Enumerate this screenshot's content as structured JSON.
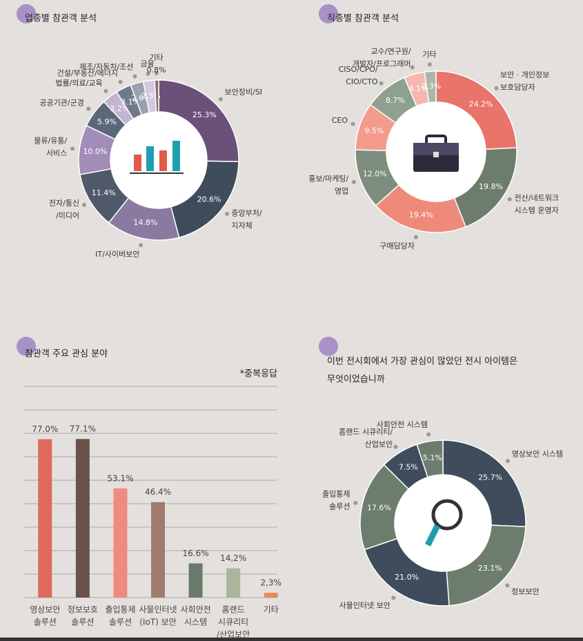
{
  "chart_data": [
    {
      "type": "donut",
      "title": "업종별 참관객 분석",
      "categories": [
        [
          "보안장비/SI"
        ],
        [
          "중앙부처/",
          "지자체"
        ],
        [
          "IT/사이버보안"
        ],
        [
          "전자/통신",
          "/미디어"
        ],
        [
          "물류/유통/",
          "서비스"
        ],
        [
          "공공기관/군경"
        ],
        [
          "법률/의료/교육"
        ],
        [
          "건설/부동산/에너지"
        ],
        [
          "제조/자동차/조선"
        ],
        [
          "금융"
        ],
        [
          "기타"
        ]
      ],
      "values": [
        25.3,
        20.6,
        14.8,
        11.4,
        10.0,
        5.9,
        3.2,
        3.1,
        2.6,
        2.3,
        0.8
      ],
      "value_labels": [
        "25.3%",
        "20.6%",
        "14.8%",
        "11.4%",
        "10.0%",
        "5.9%",
        "3.2%",
        "3.1%",
        "2.6%",
        "2.3%",
        "0.8%"
      ],
      "colors": [
        "#6b5179",
        "#3f4c5b",
        "#8b7a9f",
        "#4f5969",
        "#a28db9",
        "#5b6879",
        "#c2b4d0",
        "#6f7b8d",
        "#9ba0b1",
        "#d2cae1",
        "#8b6b6b"
      ]
    },
    {
      "type": "donut",
      "title": "직종별 참관객 분석",
      "categories": [
        [
          "보안 · 개인정보",
          "보호담당자"
        ],
        [
          "전산/네트워크",
          "시스템 운영자"
        ],
        [
          "구매담당자"
        ],
        [
          "홍보/마케팅/",
          "영업"
        ],
        [
          "CEO"
        ],
        [
          "CISO/CPO/",
          "CIO/CTO"
        ],
        [
          "교수/연구원/",
          "개발자/프로그래머"
        ],
        [
          "기타"
        ]
      ],
      "values": [
        24.2,
        19.8,
        19.4,
        12.0,
        9.5,
        8.7,
        4.1,
        2.3
      ],
      "value_labels": [
        "24.2%",
        "19.8%",
        "19.4%",
        "12.0%",
        "9.5%",
        "8.7%",
        "4.1%",
        "2.3%"
      ],
      "colors": [
        "#e8746a",
        "#6d7d6d",
        "#ef8a7b",
        "#7e8e7e",
        "#f39b8d",
        "#8fa091",
        "#f6b7af",
        "#a9b8a9"
      ]
    },
    {
      "type": "bar",
      "title": "참관객 주요 관심 분야",
      "note": "*중복응답",
      "categories": [
        [
          "영상보안",
          "솔루션"
        ],
        [
          "정보보호",
          "솔루션"
        ],
        [
          "출입통제",
          "솔루션"
        ],
        [
          "사물인터넷",
          "(IoT) 보안"
        ],
        [
          "사회안전",
          "시스템"
        ],
        [
          "홈랜드",
          "시큐리티",
          "/산업보안"
        ],
        [
          "기타"
        ]
      ],
      "values": [
        77.0,
        77.1,
        53.1,
        46.4,
        16.6,
        14.2,
        2.3
      ],
      "value_labels": [
        "77.0%",
        "77.1%",
        "53.1%",
        "46.4%",
        "16.6%",
        "14,2%",
        "2,3%"
      ],
      "colors": [
        "#e0695e",
        "#6a5149",
        "#ef8a80",
        "#a07b6f",
        "#6a7a6a",
        "#a9b59d",
        "#e8895b"
      ],
      "ylim": [
        0,
        100
      ]
    },
    {
      "type": "donut",
      "title": [
        "이번 전시회에서 가장 관심이 많았던 전시 아이템은",
        "무엇이었습니까"
      ],
      "categories": [
        [
          "영상보안 시스템"
        ],
        [
          "정보보안"
        ],
        [
          "사물인터넷 보안"
        ],
        [
          "출입통제",
          "솔루션"
        ],
        [
          "홈랜드 시큐리티/",
          "산업보안"
        ],
        [
          "사회안전 시스템"
        ]
      ],
      "values": [
        25.7,
        23.1,
        21.0,
        17.6,
        7.5,
        5.1
      ],
      "value_labels": [
        "25.7%",
        "23.1%",
        "21.0%",
        "17.6%",
        "7.5%",
        "5.1%"
      ],
      "colors": [
        "#3f4c5b",
        "#6d7d6d",
        "#3f4c5b",
        "#6d7d6d",
        "#3f4c5b",
        "#6d7d6d"
      ]
    }
  ]
}
